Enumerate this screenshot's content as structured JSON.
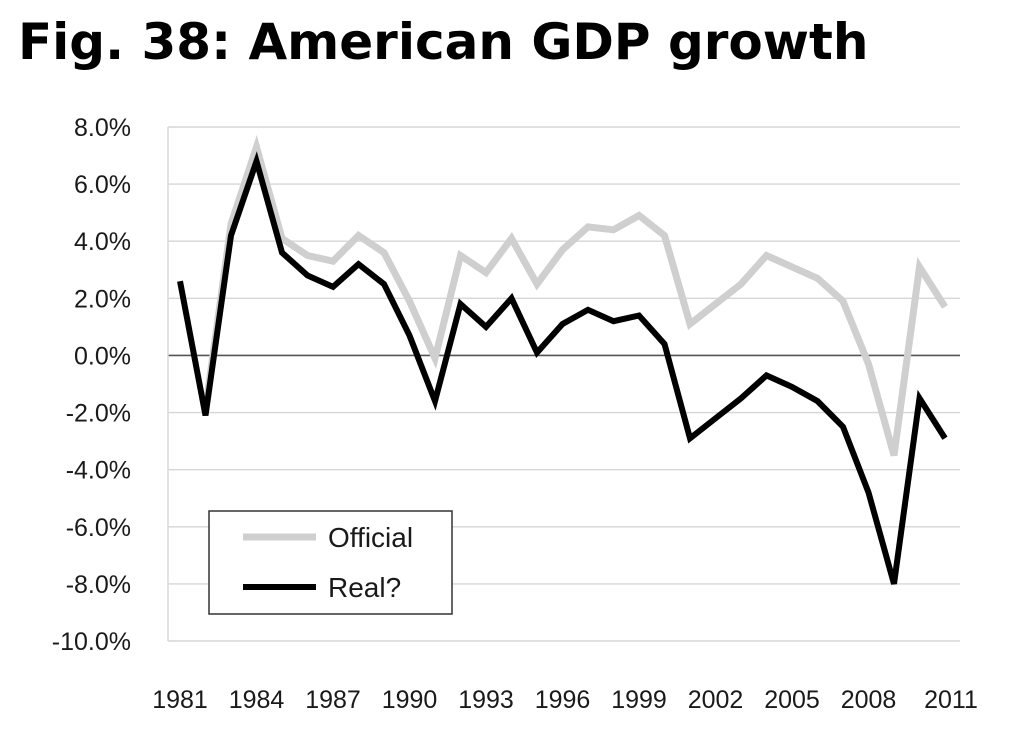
{
  "title": "Fig. 38: American GDP growth",
  "chart_data": {
    "type": "line",
    "x": [
      1981,
      1982,
      1983,
      1984,
      1985,
      1986,
      1987,
      1988,
      1989,
      1990,
      1991,
      1992,
      1993,
      1994,
      1995,
      1996,
      1997,
      1998,
      1999,
      2000,
      2001,
      2002,
      2003,
      2004,
      2005,
      2006,
      2007,
      2008,
      2009,
      2010,
      2011
    ],
    "x_tick_labels": [
      "1981",
      "1984",
      "1987",
      "1990",
      "1993",
      "1996",
      "1999",
      "2002",
      "2005",
      "2008",
      "2011"
    ],
    "x_ticks": [
      1981,
      1984,
      1987,
      1990,
      1993,
      1996,
      1999,
      2002,
      2005,
      2008,
      2011
    ],
    "y_ticks": [
      8,
      6,
      4,
      2,
      0,
      -2,
      -4,
      -6,
      -8,
      -10
    ],
    "y_tick_labels": [
      "8.0%",
      "6.0%",
      "4.0%",
      "2.0%",
      "0.0%",
      "-2.0%",
      "-4.0%",
      "-6.0%",
      "-8.0%",
      "-10.0%"
    ],
    "ylim": [
      -10,
      8
    ],
    "grid": true,
    "legend_position": "bottom-left",
    "series": [
      {
        "name": "Official",
        "color": "#cfcfcf",
        "x": [
          1982,
          1983,
          1984,
          1985,
          1986,
          1987,
          1988,
          1989,
          1990,
          1991,
          1992,
          1993,
          1994,
          1995,
          1996,
          1997,
          1998,
          1999,
          2000,
          2001,
          2002,
          2003,
          2004,
          2005,
          2006,
          2007,
          2008,
          2009,
          2010,
          2011
        ],
        "values": [
          -1.9,
          4.6,
          7.3,
          4.1,
          3.5,
          3.3,
          4.2,
          3.6,
          1.9,
          -0.1,
          3.5,
          2.9,
          4.1,
          2.5,
          3.7,
          4.5,
          4.4,
          4.9,
          4.2,
          1.1,
          1.8,
          2.5,
          3.5,
          3.1,
          2.7,
          1.9,
          -0.3,
          -3.5,
          3.1,
          1.7
        ]
      },
      {
        "name": "Real?",
        "color": "#000000",
        "x": [
          1981,
          1982,
          1983,
          1984,
          1985,
          1986,
          1987,
          1988,
          1989,
          1990,
          1991,
          1992,
          1993,
          1994,
          1995,
          1996,
          1997,
          1998,
          1999,
          2000,
          2001,
          2002,
          2003,
          2004,
          2005,
          2006,
          2007,
          2008,
          2009,
          2010,
          2011
        ],
        "values": [
          2.6,
          -2.1,
          4.2,
          6.8,
          3.6,
          2.8,
          2.4,
          3.2,
          2.5,
          0.7,
          -1.6,
          1.8,
          1.0,
          2.0,
          0.1,
          1.1,
          1.6,
          1.2,
          1.4,
          0.4,
          -2.9,
          -2.2,
          -1.5,
          -0.7,
          -1.1,
          -1.6,
          -2.5,
          -4.8,
          -8.0,
          -1.5,
          -2.9
        ]
      }
    ]
  }
}
